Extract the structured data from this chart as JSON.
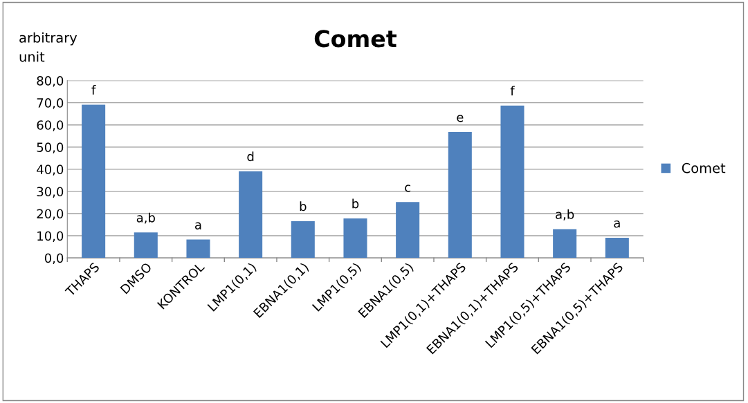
{
  "chart_data": {
    "type": "bar",
    "title": "Comet",
    "ylabel": "arbitrary\nunit",
    "categories": [
      "THAPS",
      "DMSO",
      "KONTROL",
      "LMP1(0,1)",
      "EBNA1(0,1)",
      "LMP1(0,5)",
      "EBNA1(0,5)",
      "LMP1(0,1)+THAPS",
      "EBNA1(0,1)+THAPS",
      "LMP1(0,5)+THAPS",
      "EBNA1(0,5)+THAPS"
    ],
    "series": [
      {
        "name": "Comet",
        "color": "#4f81bd",
        "values": [
          69.1,
          11.5,
          8.3,
          39.1,
          16.6,
          17.8,
          25.2,
          56.8,
          68.7,
          13.0,
          9.1
        ],
        "value_labels": [
          "f",
          "a,b",
          "a",
          "d",
          "b",
          "b",
          "c",
          "e",
          "f",
          "a,b",
          "a"
        ]
      }
    ],
    "ylim": [
      0,
      80
    ],
    "yticks": [
      {
        "value": 0,
        "label": "0,0"
      },
      {
        "value": 10,
        "label": "10,0"
      },
      {
        "value": 20,
        "label": "20,0"
      },
      {
        "value": 30,
        "label": "30,0"
      },
      {
        "value": 40,
        "label": "40,0"
      },
      {
        "value": 50,
        "label": "50,0"
      },
      {
        "value": 60,
        "label": "60,0"
      },
      {
        "value": 70,
        "label": "70,0"
      },
      {
        "value": 80,
        "label": "80,0"
      }
    ],
    "grid": "y",
    "legend": "right"
  }
}
